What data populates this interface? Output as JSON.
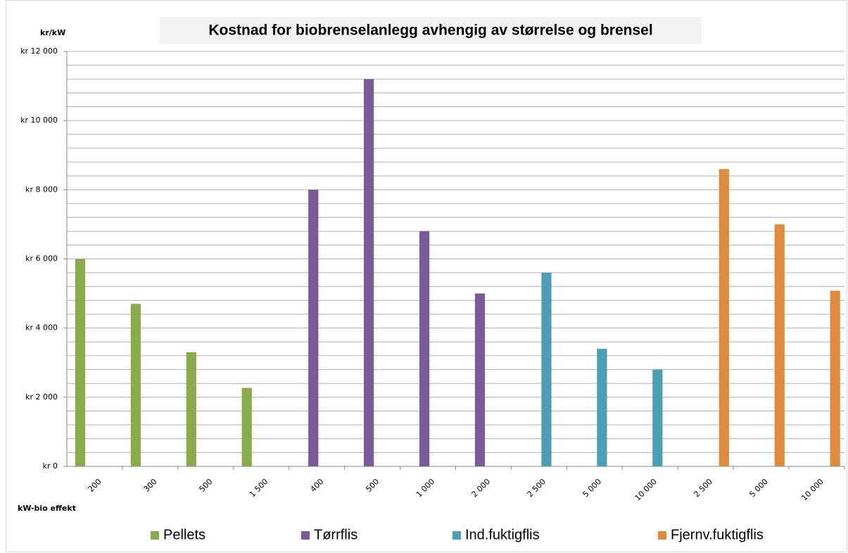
{
  "chart_data": {
    "type": "bar",
    "title": "Kostnad for biobrenselanlegg avhengig av størrelse og brensel",
    "y_axis_label": "kr/kW",
    "x_axis_label": "kW-bio effekt",
    "categories": [
      "200",
      "300",
      "500",
      "1 500",
      "400",
      "500",
      "1 000",
      "2 000",
      "2 500",
      "5 000",
      "10 000",
      "2 500",
      "5 000",
      "10 000"
    ],
    "series": [
      {
        "name": "Pellets",
        "color": "#8aab4b",
        "values": [
          6000,
          4700,
          3300,
          2270,
          null,
          null,
          null,
          null,
          null,
          null,
          null,
          null,
          null,
          null
        ]
      },
      {
        "name": "Tørrflis",
        "color": "#7a5a97",
        "values": [
          null,
          null,
          null,
          null,
          8000,
          11200,
          6800,
          5000,
          null,
          null,
          null,
          null,
          null,
          null
        ]
      },
      {
        "name": "Ind.fuktigflis",
        "color": "#4a9fb5",
        "values": [
          null,
          null,
          null,
          null,
          null,
          null,
          null,
          null,
          5600,
          3400,
          2800,
          null,
          null,
          null
        ]
      },
      {
        "name": "Fjernv.fuktigflis",
        "color": "#e08a3d",
        "values": [
          null,
          null,
          null,
          null,
          null,
          null,
          null,
          null,
          null,
          null,
          null,
          8600,
          7000,
          5080
        ]
      }
    ],
    "ylim": [
      0,
      12000
    ],
    "yticks": [
      {
        "value": 0,
        "label": "kr 0"
      },
      {
        "value": 2000,
        "label": "kr 2 000"
      },
      {
        "value": 4000,
        "label": "kr 4 000"
      },
      {
        "value": 6000,
        "label": "kr 6 000"
      },
      {
        "value": 8000,
        "label": "kr 8 000"
      },
      {
        "value": 10000,
        "label": "kr 10 000"
      },
      {
        "value": 12000,
        "label": "kr 12 000"
      }
    ],
    "y_minor_ticks": [
      400,
      800,
      1200,
      1600,
      2400,
      2800,
      3200,
      3600,
      4400,
      4800,
      5200,
      5600,
      6400,
      6800,
      7200,
      7600,
      8400,
      8800,
      9200,
      9600,
      10400,
      10800,
      11200,
      11600
    ],
    "grid": true,
    "legend": "bottom"
  }
}
